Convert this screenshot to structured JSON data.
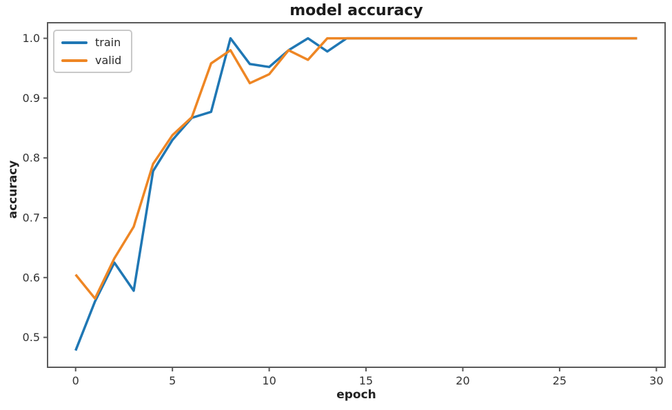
{
  "chart_data": {
    "type": "line",
    "title": "model accuracy",
    "xlabel": "epoch",
    "ylabel": "accuracy",
    "x": [
      0,
      1,
      2,
      3,
      4,
      5,
      6,
      7,
      8,
      9,
      10,
      11,
      12,
      13,
      14,
      15,
      16,
      17,
      18,
      19,
      20,
      21,
      22,
      23,
      24,
      25,
      26,
      27,
      28,
      29
    ],
    "series": [
      {
        "name": "train",
        "color": "#1f77b4",
        "values": [
          0.478,
          0.56,
          0.625,
          0.578,
          0.778,
          0.83,
          0.867,
          0.877,
          1.0,
          0.957,
          0.952,
          0.98,
          1.0,
          0.978,
          1.0,
          1.0,
          1.0,
          1.0,
          1.0,
          1.0,
          1.0,
          1.0,
          1.0,
          1.0,
          1.0,
          1.0,
          1.0,
          1.0,
          1.0,
          1.0
        ]
      },
      {
        "name": "valid",
        "color": "#ee8624",
        "values": [
          0.605,
          0.565,
          0.632,
          0.685,
          0.79,
          0.838,
          0.868,
          0.958,
          0.98,
          0.925,
          0.94,
          0.98,
          0.964,
          1.0,
          1.0,
          1.0,
          1.0,
          1.0,
          1.0,
          1.0,
          1.0,
          1.0,
          1.0,
          1.0,
          1.0,
          1.0,
          1.0,
          1.0,
          1.0,
          1.0
        ]
      }
    ],
    "x_ticks": [
      0,
      5,
      10,
      15,
      20,
      25,
      30
    ],
    "y_ticks": [
      0.5,
      0.6,
      0.7,
      0.8,
      0.9,
      1.0
    ],
    "xlim": [
      -1.45,
      30.45
    ],
    "ylim": [
      0.45,
      1.026
    ],
    "grid": false,
    "legend": {
      "position": "upper-left",
      "entries": [
        "train",
        "valid"
      ]
    }
  },
  "colors": {
    "spine": "#5a5a5a",
    "tick_text": "#333333",
    "background": "#ffffff"
  }
}
